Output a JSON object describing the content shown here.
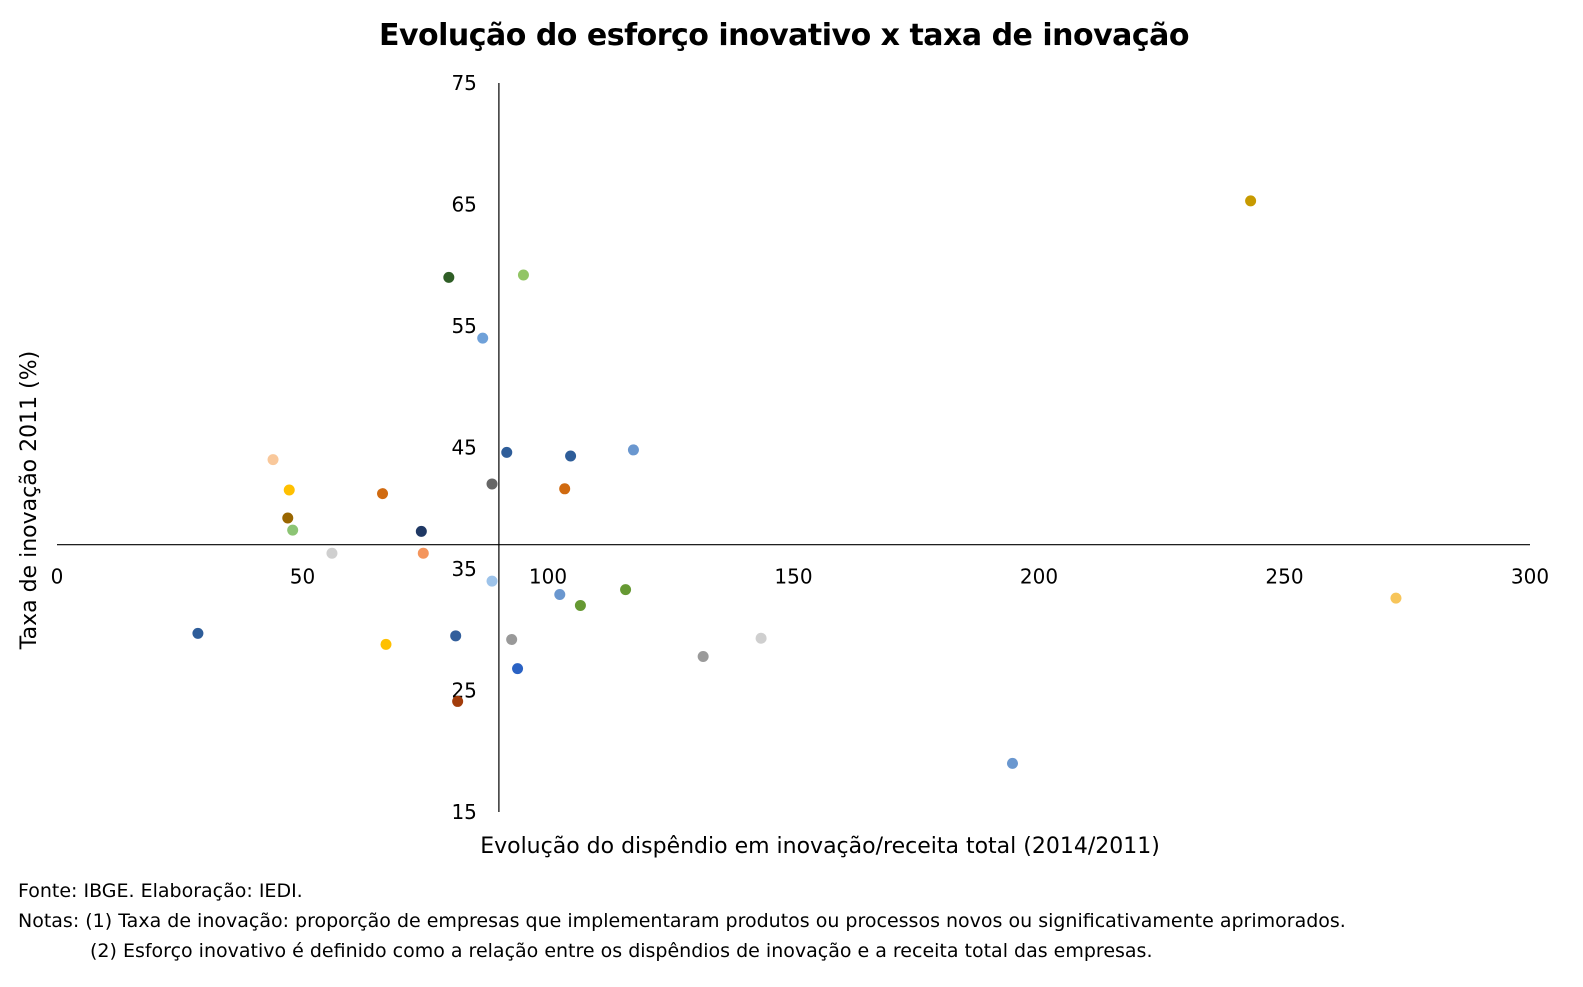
{
  "chart_data": {
    "type": "scatter",
    "title": "Evolução do esforço inovativo x taxa de inovação",
    "xlabel": "Evolução do dispêndio em inovação/receita total (2014/2011)",
    "ylabel": "Taxa de inovação 2011 (%)",
    "xlim": [
      0,
      300
    ],
    "ylim": [
      15,
      75
    ],
    "x_ticks": [
      "0",
      "50",
      "100",
      "150",
      "200",
      "250",
      "300"
    ],
    "y_ticks": [
      "75",
      "65",
      "55",
      "45",
      "35",
      "25",
      "15"
    ],
    "axis_crossing": {
      "x": 90,
      "y": 37
    },
    "grid": false,
    "legend": "none",
    "points": [
      {
        "x": 28.7,
        "y": 29.7,
        "color": "#2e5d99"
      },
      {
        "x": 44.0,
        "y": 44.0,
        "color": "#f9c89b"
      },
      {
        "x": 47.3,
        "y": 41.5,
        "color": "#ffc000"
      },
      {
        "x": 47.0,
        "y": 39.2,
        "color": "#996600"
      },
      {
        "x": 48.0,
        "y": 38.2,
        "color": "#8cc474"
      },
      {
        "x": 56.0,
        "y": 36.3,
        "color": "#cfcfcf"
      },
      {
        "x": 66.3,
        "y": 41.2,
        "color": "#d06a10"
      },
      {
        "x": 67.0,
        "y": 28.8,
        "color": "#ffc000"
      },
      {
        "x": 74.2,
        "y": 38.1,
        "color": "#1f3864"
      },
      {
        "x": 74.6,
        "y": 36.3,
        "color": "#f4955c"
      },
      {
        "x": 79.8,
        "y": 59.0,
        "color": "#2f5e26"
      },
      {
        "x": 81.2,
        "y": 29.5,
        "color": "#335f9c"
      },
      {
        "x": 81.6,
        "y": 24.1,
        "color": "#a23c0b"
      },
      {
        "x": 86.7,
        "y": 54.0,
        "color": "#6fa1d9"
      },
      {
        "x": 88.6,
        "y": 34.0,
        "color": "#9dc3ea"
      },
      {
        "x": 88.6,
        "y": 42.0,
        "color": "#666666"
      },
      {
        "x": 91.6,
        "y": 44.6,
        "color": "#2e5d99"
      },
      {
        "x": 92.6,
        "y": 29.2,
        "color": "#999999"
      },
      {
        "x": 93.8,
        "y": 26.8,
        "color": "#2a62c4"
      },
      {
        "x": 95.0,
        "y": 59.2,
        "color": "#92c565"
      },
      {
        "x": 102.4,
        "y": 32.9,
        "color": "#6a97cf"
      },
      {
        "x": 103.4,
        "y": 41.6,
        "color": "#d06a10"
      },
      {
        "x": 104.6,
        "y": 44.3,
        "color": "#2e5d99"
      },
      {
        "x": 106.6,
        "y": 32.0,
        "color": "#669933"
      },
      {
        "x": 115.8,
        "y": 33.3,
        "color": "#669933"
      },
      {
        "x": 117.4,
        "y": 44.8,
        "color": "#6a97cf"
      },
      {
        "x": 131.6,
        "y": 27.8,
        "color": "#9a9a9a"
      },
      {
        "x": 143.4,
        "y": 29.3,
        "color": "#cfcfcf"
      },
      {
        "x": 194.6,
        "y": 19.0,
        "color": "#6a97cf"
      },
      {
        "x": 243.1,
        "y": 65.3,
        "color": "#c79a00"
      },
      {
        "x": 272.7,
        "y": 32.6,
        "color": "#f7c55a"
      }
    ]
  },
  "notes": {
    "source": "Fonte: IBGE. Elaboração: IEDI.",
    "note1": "Notas: (1) Taxa de inovação: proporção de empresas que implementaram produtos ou processos novos ou significativamente aprimorados.",
    "note2": "(2) Esforço inovativo é definido como a relação entre os dispêndios de inovação e a receita total das empresas."
  }
}
